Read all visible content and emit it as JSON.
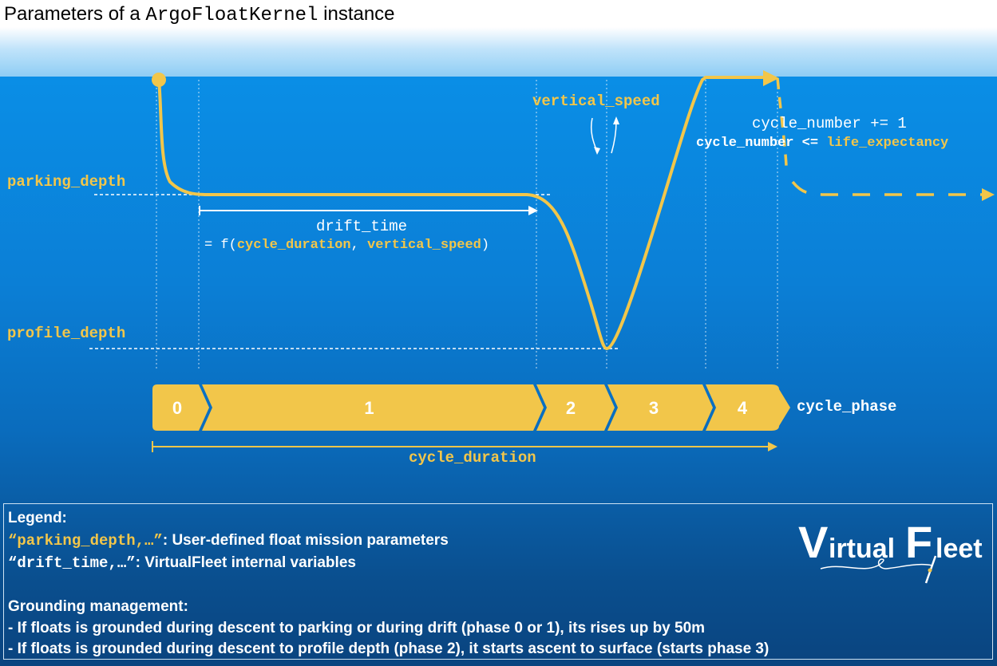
{
  "title": {
    "prefix": "Parameters of a ",
    "code": "ArgoFloatKernel",
    "suffix": " instance"
  },
  "labels": {
    "parking_depth": "parking_depth",
    "profile_depth": "profile_depth",
    "vertical_speed": "vertical_speed",
    "drift_time": "drift_time",
    "drift_formula_prefix": "= f(",
    "drift_formula_arg1": "cycle_duration",
    "drift_formula_sep": ", ",
    "drift_formula_arg2": "vertical_speed",
    "drift_formula_suffix": ")",
    "cycle_number_increment": "cycle_number += 1",
    "cycle_number_cond_prefix": "cycle_number <= ",
    "life_expectancy": "life_expectancy",
    "cycle_phase": "cycle_phase",
    "cycle_duration": "cycle_duration"
  },
  "phases": [
    "0",
    "1",
    "2",
    "3",
    "4"
  ],
  "legend": {
    "heading": "Legend:",
    "item1_code": "“parking_depth,…”",
    "item1_text": ":  User-defined float mission parameters",
    "item2_code": "“drift_time,…”",
    "item2_text": ":  VirtualFleet internal variables",
    "grounding_heading": "Grounding management:",
    "grounding_1": "- If floats is grounded during descent to parking or during drift (phase 0 or 1), its rises up by 50m",
    "grounding_2": "- If floats is grounded during descent to profile depth (phase 2), it starts ascent to surface (starts phase 3)"
  },
  "logo": {
    "text_v": "V",
    "text_irtual": "irtual",
    "text_f": "F",
    "text_leet": "leet"
  },
  "colors": {
    "accent": "#f2c64a",
    "ocean_top": "#0a8ee6",
    "ocean_bottom": "#0a447f",
    "text": "#ffffff"
  }
}
